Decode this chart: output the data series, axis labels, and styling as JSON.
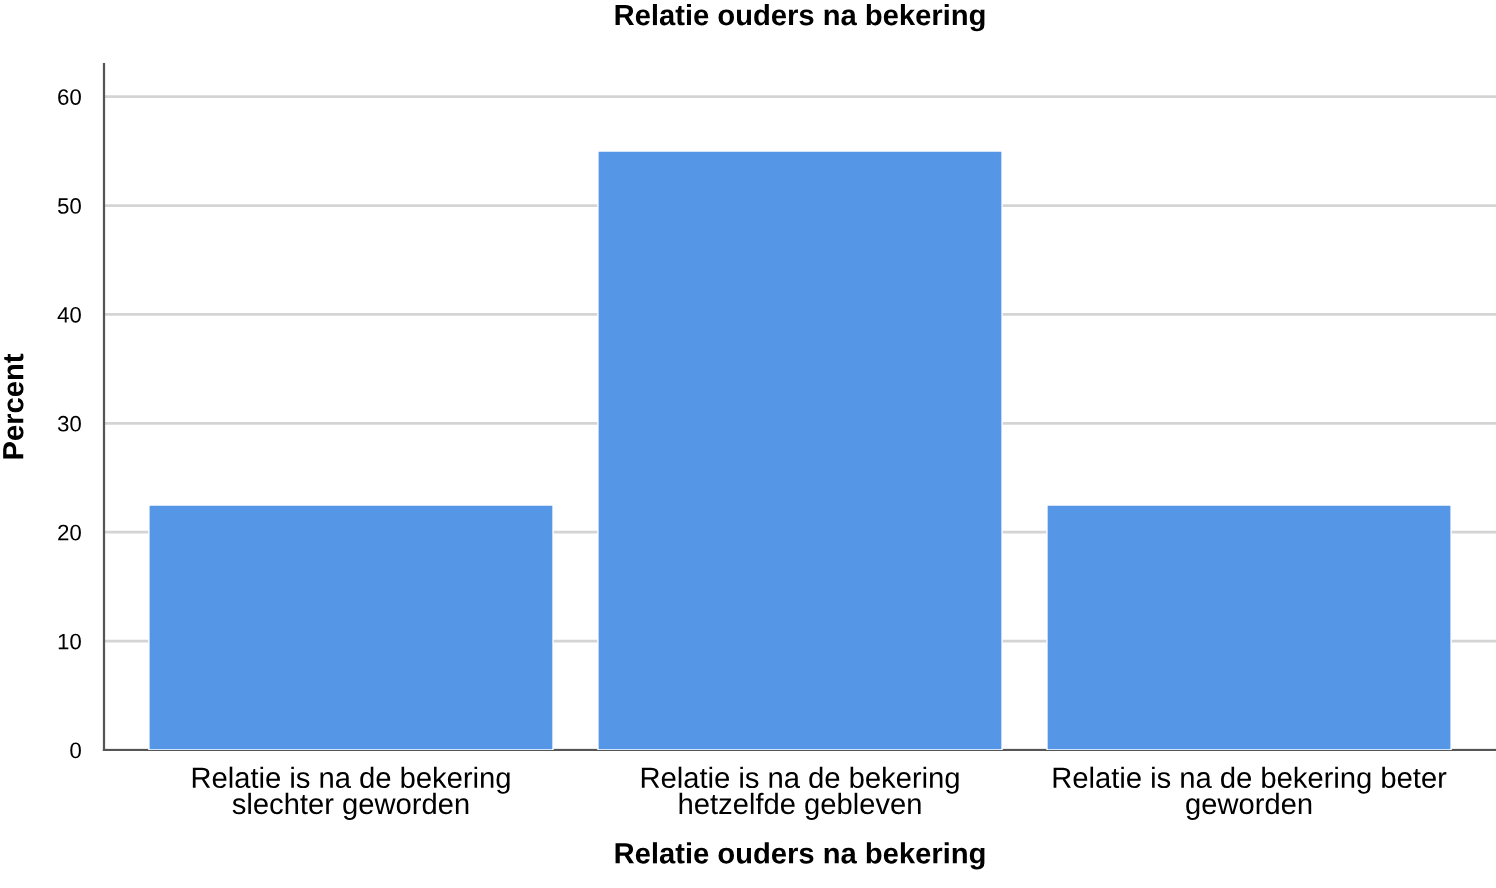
{
  "chart_data": {
    "type": "bar",
    "title": "Relatie ouders na bekering",
    "xlabel": "Relatie ouders na bekering",
    "ylabel": "Percent",
    "categories": [
      "Relatie is na de bekering\nslechter geworden",
      "Relatie is na de bekering\nhetzelfde gebleven",
      "Relatie is na de bekering beter\ngeworden"
    ],
    "values": [
      22.5,
      55,
      22.5
    ],
    "color": "#5596e6",
    "ylim": [
      0,
      63
    ],
    "yticks": [
      0,
      10,
      20,
      30,
      40,
      50,
      60
    ],
    "grid": "y",
    "legend": false
  }
}
